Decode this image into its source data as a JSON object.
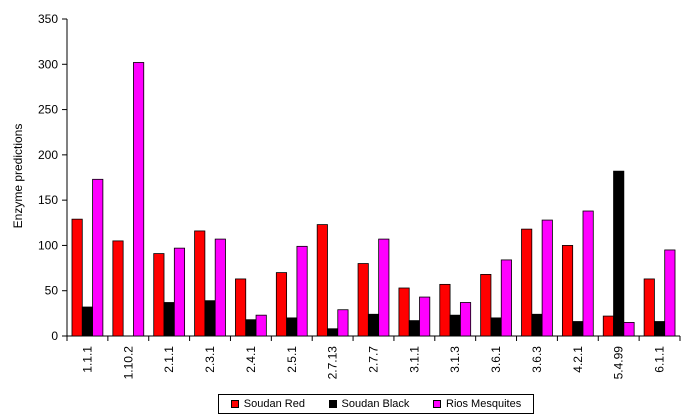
{
  "chart_data": {
    "type": "bar",
    "ylabel": "Enzyme predictions",
    "xlabel": "",
    "ylim": [
      0,
      350
    ],
    "yticks": [
      0,
      50,
      100,
      150,
      200,
      250,
      300,
      350
    ],
    "categories": [
      "1.1.1",
      "1.10.2",
      "2.1.1",
      "2.3.1",
      "2.4.1",
      "2.5.1",
      "2.7.13",
      "2.7.7",
      "3.1.1",
      "3.1.3",
      "3.6.1",
      "3.6.3",
      "4.2.1",
      "5.4.99",
      "6.1.1"
    ],
    "series": [
      {
        "name": "Soudan Red",
        "color": "#ff0000",
        "values": [
          129,
          105,
          91,
          116,
          63,
          70,
          123,
          80,
          53,
          57,
          68,
          118,
          100,
          22,
          63
        ]
      },
      {
        "name": "Soudan Black",
        "color": "#000000",
        "values": [
          32,
          0,
          37,
          39,
          18,
          20,
          8,
          24,
          17,
          23,
          20,
          24,
          16,
          182,
          16
        ]
      },
      {
        "name": "Rios Mesquites",
        "color": "#ff00ff",
        "values": [
          173,
          302,
          97,
          107,
          23,
          99,
          29,
          107,
          43,
          37,
          84,
          128,
          138,
          15,
          95
        ]
      }
    ],
    "grid": false,
    "legend_position": "bottom"
  }
}
